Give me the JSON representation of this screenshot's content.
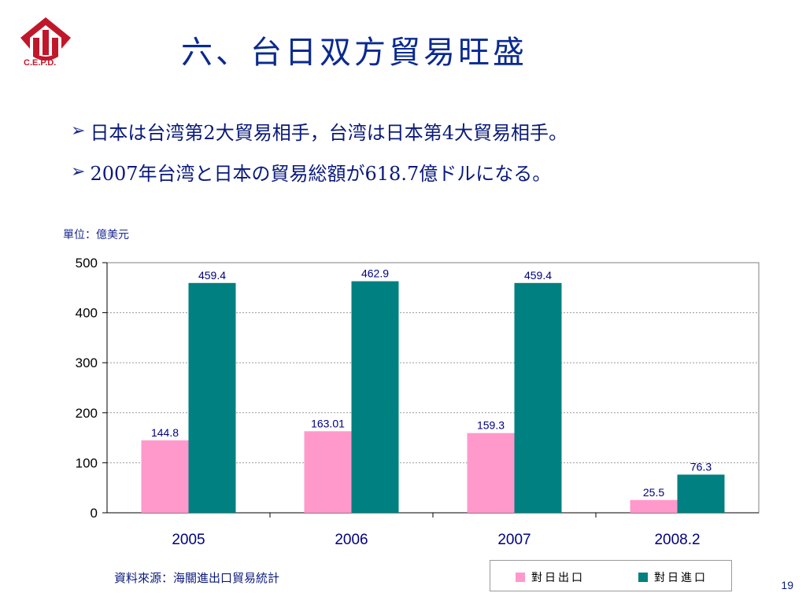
{
  "logo": {
    "text": "C.E.P.D.",
    "color": "#c0182a"
  },
  "title": "六、台日双方貿易旺盛",
  "bullets": [
    "日本は台湾第2大貿易相手，台湾は日本第4大貿易相手。",
    "2007年台湾と日本の貿易総額が618.7億ドルになる。"
  ],
  "unit_label": "單位：億美元",
  "source": "資料來源：海關進出口貿易統計",
  "page_number": "19",
  "colors": {
    "export": "#ff99cc",
    "import": "#008080",
    "title": "#0a2a8f"
  },
  "chart_data": {
    "type": "bar",
    "categories": [
      "2005",
      "2006",
      "2007",
      "2008.2"
    ],
    "series": [
      {
        "name": "對日出口",
        "values": [
          144.8,
          163.01,
          159.3,
          25.5
        ],
        "labels": [
          "144.8",
          "163.01",
          "159.3",
          "25.5"
        ],
        "color": "#ff99cc"
      },
      {
        "name": "對日進口",
        "values": [
          459.4,
          462.9,
          459.4,
          76.3
        ],
        "labels": [
          "459.4",
          "462.9",
          "459.4",
          "76.3"
        ],
        "color": "#008080"
      }
    ],
    "ylim": [
      0,
      500
    ],
    "yticks": [
      "0",
      "100",
      "200",
      "300",
      "400",
      "500"
    ],
    "grid": true,
    "legend": "bottom-right"
  }
}
